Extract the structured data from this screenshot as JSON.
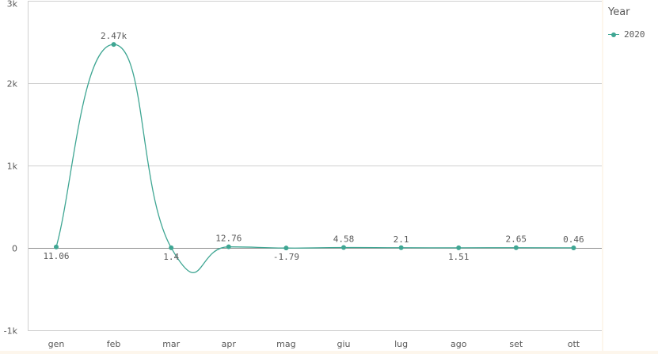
{
  "chart_data": {
    "type": "line",
    "title": "",
    "xlabel": "",
    "ylabel": "",
    "categories": [
      "gen",
      "feb",
      "mar",
      "apr",
      "mag",
      "giu",
      "lug",
      "ago",
      "set",
      "ott"
    ],
    "ylim": [
      -1000,
      3000
    ],
    "y_ticks": [
      -1000,
      0,
      1000,
      2000,
      3000
    ],
    "y_tick_labels": [
      "-1k",
      "0",
      "1k",
      "2k",
      "3k"
    ],
    "grid": true,
    "legend_position": "right",
    "series": [
      {
        "name": "2020",
        "color": "#3fa693",
        "values": [
          11.06,
          2470,
          1.4,
          12.76,
          -1.79,
          4.58,
          2.1,
          1.51,
          2.65,
          0.46
        ],
        "data_labels": [
          "11.06",
          "2.47k",
          "1.4",
          "12.76",
          "-1.79",
          "4.58",
          "2.1",
          "1.51",
          "2.65",
          "0.46"
        ],
        "label_positions": [
          "below",
          "above",
          "below",
          "above",
          "below",
          "above",
          "above",
          "below",
          "above",
          "above"
        ]
      }
    ]
  },
  "legend": {
    "title": "Year",
    "items": [
      "2020"
    ]
  }
}
